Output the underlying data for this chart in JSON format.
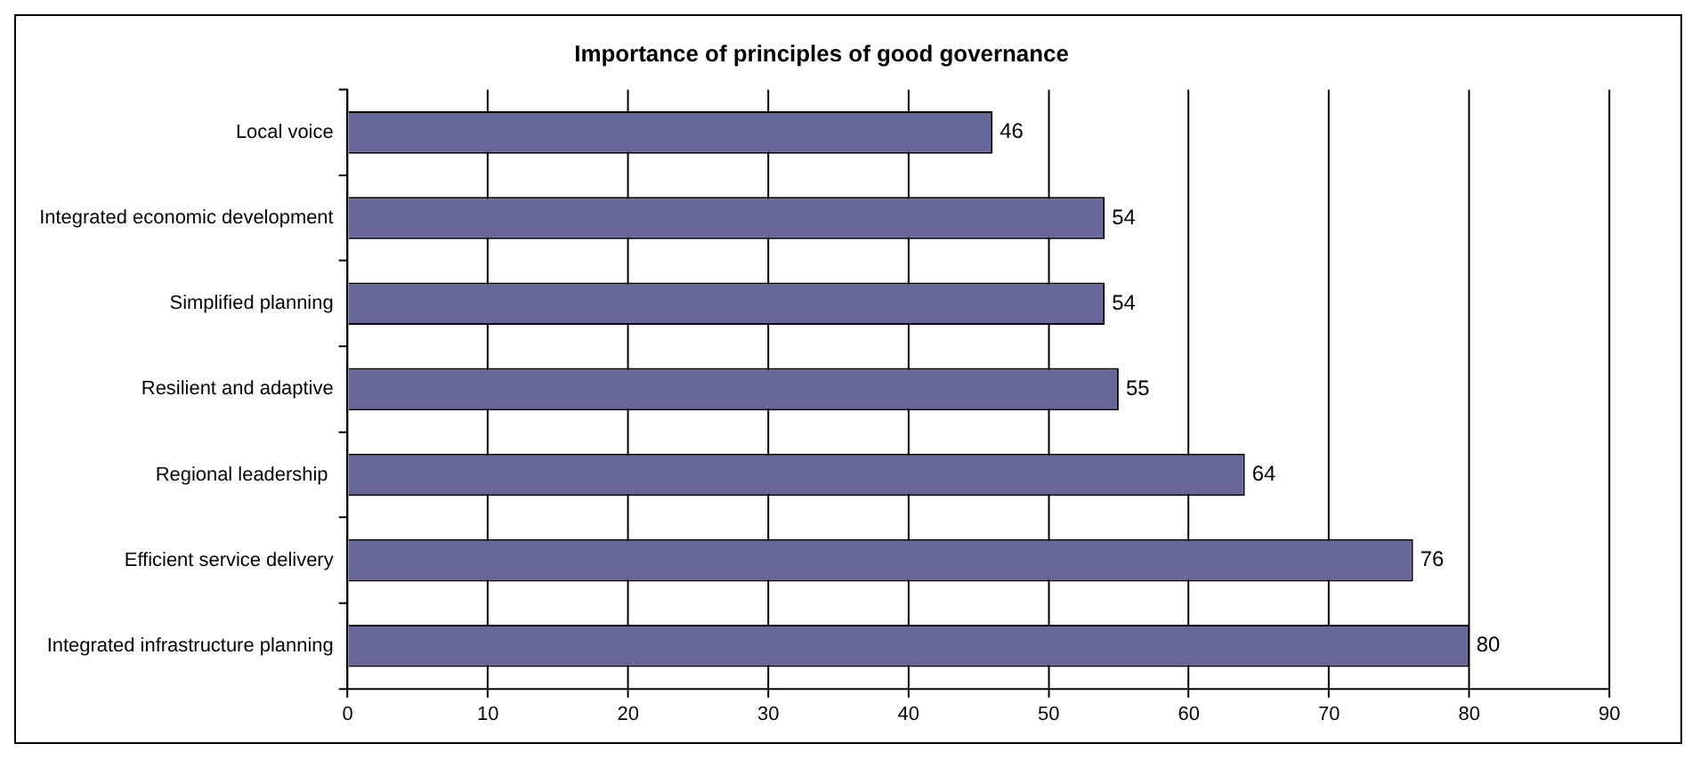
{
  "chart_data": {
    "type": "bar",
    "orientation": "horizontal",
    "title": "Importance of principles of good governance",
    "categories": [
      "Local voice",
      "Integrated economic development",
      "Simplified planning",
      "Resilient and adaptive",
      "Regional leadership ",
      "Efficient service delivery",
      "Integrated infrastructure planning"
    ],
    "values": [
      46,
      54,
      54,
      55,
      64,
      76,
      80
    ],
    "color": "#666699",
    "xlim": [
      0,
      90
    ],
    "xticks": [
      0,
      10,
      20,
      30,
      40,
      50,
      60,
      70,
      80,
      90
    ],
    "grid": "x",
    "data_labels": true,
    "legend": false
  }
}
